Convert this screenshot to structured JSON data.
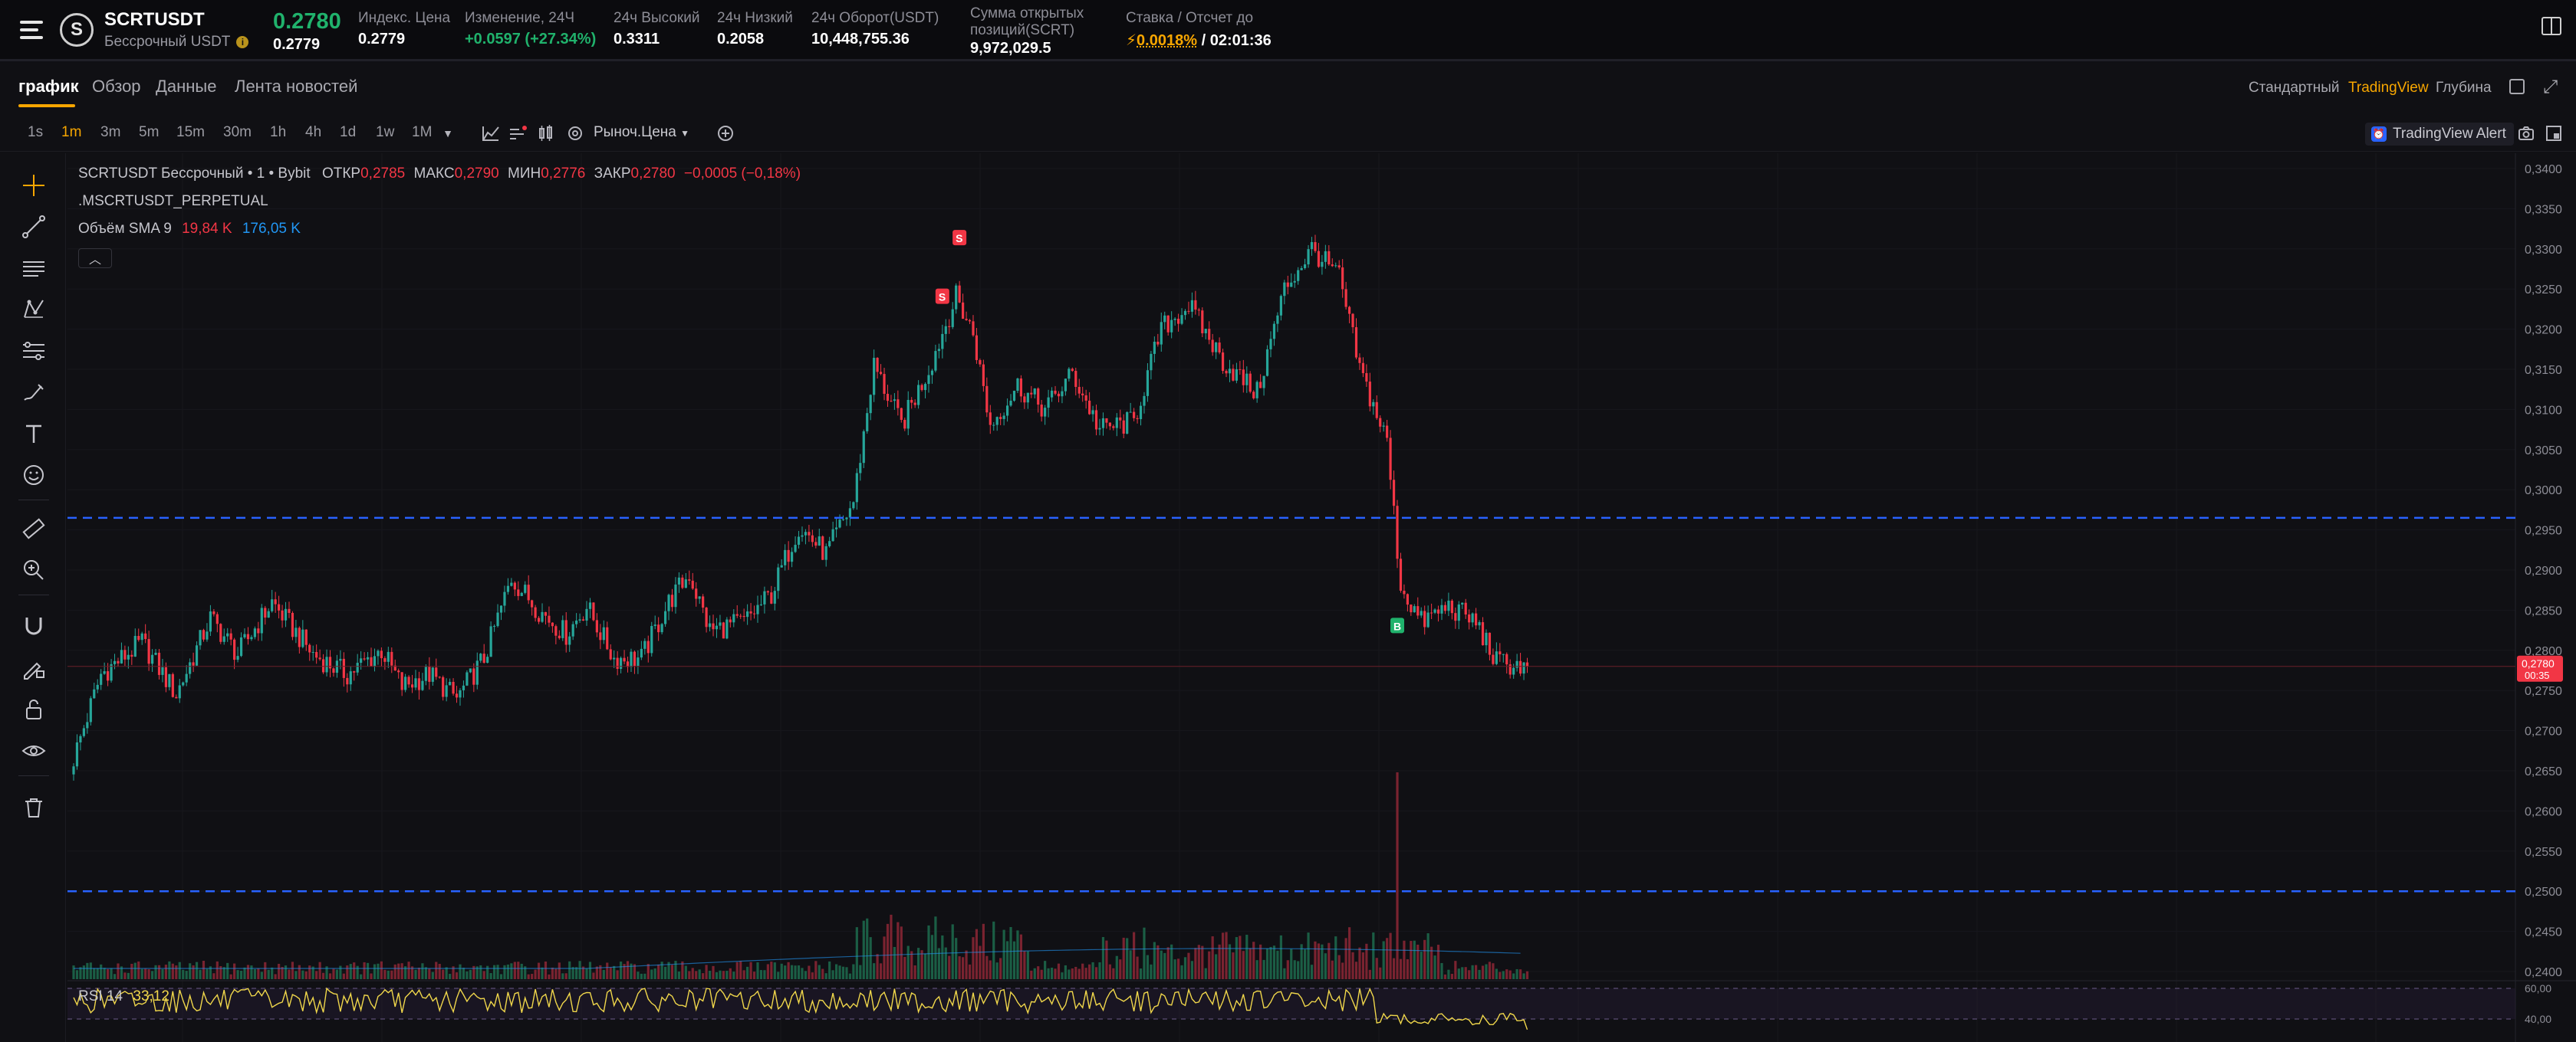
{
  "header": {
    "symbol": "SCRTUSDT",
    "contract_type": "Бессрочный USDT",
    "coin_icon": "S",
    "last_price": "0.2780",
    "mark_price": "0.2779",
    "stats": [
      {
        "label": "Индекс. Цена",
        "value": "0.2779",
        "tone": "white"
      },
      {
        "label": "Изменение, 24Ч",
        "value": "+0.0597 (+27.34%)",
        "tone": "green"
      },
      {
        "label": "24ч Высокий",
        "value": "0.3311",
        "tone": "white"
      },
      {
        "label": "24ч Низкий",
        "value": "0.2058",
        "tone": "white"
      },
      {
        "label": "24ч Оборот(USDT)",
        "value": "10,448,755.36",
        "tone": "white"
      },
      {
        "label_line1": "Сумма открытых",
        "label_line2": "позиций(SCRT)",
        "value": "9,972,029.5",
        "tone": "white"
      },
      {
        "label": "Ставка / Отсчет до",
        "rate": "0.0018%",
        "countdown": "/ 02:01:36"
      }
    ]
  },
  "tabs": [
    {
      "label": "график",
      "active": true
    },
    {
      "label": "Обзор"
    },
    {
      "label": "Данные"
    },
    {
      "label": "Лента новостей"
    }
  ],
  "view_modes": [
    {
      "label": "Стандартный"
    },
    {
      "label": "TradingView",
      "active": true
    },
    {
      "label": "Глубина"
    }
  ],
  "timeframes": [
    "1s",
    "1m",
    "3m",
    "5m",
    "15m",
    "30m",
    "1h",
    "4h",
    "1d",
    "1w",
    "1M"
  ],
  "active_timeframe": "1m",
  "toolbar": {
    "price_type": "Рыноч.Цена",
    "alert_label": "TradingView Alert"
  },
  "drawing_tools": [
    "crosshair-icon",
    "trend-line-icon",
    "horizontal-lines-icon",
    "pattern-icon",
    "fib-icon",
    "brush-icon",
    "text-icon",
    "emoji-icon",
    "ruler-icon",
    "zoom-in-icon",
    "magnet-icon",
    "lock-pencil-icon",
    "lock-icon",
    "eye-icon",
    "trash-icon"
  ],
  "legend": {
    "line1_prefix": "SCRTUSDT Бессрочный • 1 • Bybit",
    "open_label": "ОТКР",
    "open": "0,2785",
    "high_label": "МАКС",
    "high": "0,2790",
    "low_label": "МИН",
    "low": "0,2776",
    "close_label": "ЗАКР",
    "close": "0,2780",
    "change": "−0,0005 (−0,18%)",
    "line2": ".MSCRTUSDT_PERPETUAL",
    "volume_label": "Объём SMA 9",
    "volume_value": "19,84 K",
    "volume_sma": "176,05 K"
  },
  "rsi": {
    "label": "RSI 14",
    "value": "33,12"
  },
  "colors": {
    "up": "#26a69a",
    "down": "#f23645",
    "accent": "#f7a600",
    "dashed": "#2962ff"
  },
  "chart_data": {
    "type": "candlestick",
    "price_axis": {
      "min": 0.24,
      "max": 0.34,
      "ticks": [
        "0,3400",
        "0,3350",
        "0,3300",
        "0,3250",
        "0,3200",
        "0,3150",
        "0,3100",
        "0,3050",
        "0,3000",
        "0,2950",
        "0,2900",
        "0,2850",
        "0,2800",
        "0,2750",
        "0,2700",
        "0,2650",
        "0,2600",
        "0,2550",
        "0,2500",
        "0,2450",
        "0,2400"
      ]
    },
    "last_price_label": "0,2780",
    "last_price_countdown": "00:35",
    "horizontal_levels": [
      0.2965,
      0.25
    ],
    "trade_markers": [
      {
        "type": "S",
        "index": 259,
        "price": 0.3313
      },
      {
        "type": "S",
        "index": 254,
        "price": 0.324
      },
      {
        "type": "B",
        "index": 387,
        "price": 0.283
      }
    ],
    "series_anchors": [
      [
        0,
        0.2665
      ],
      [
        8,
        0.277
      ],
      [
        20,
        0.281
      ],
      [
        30,
        0.2745
      ],
      [
        40,
        0.284
      ],
      [
        48,
        0.2795
      ],
      [
        58,
        0.286
      ],
      [
        70,
        0.2795
      ],
      [
        80,
        0.277
      ],
      [
        90,
        0.28
      ],
      [
        96,
        0.2755
      ],
      [
        104,
        0.277
      ],
      [
        112,
        0.274
      ],
      [
        120,
        0.279
      ],
      [
        128,
        0.289
      ],
      [
        136,
        0.285
      ],
      [
        144,
        0.282
      ],
      [
        150,
        0.2855
      ],
      [
        158,
        0.279
      ],
      [
        166,
        0.279
      ],
      [
        174,
        0.286
      ],
      [
        180,
        0.2895
      ],
      [
        186,
        0.2825
      ],
      [
        196,
        0.2835
      ],
      [
        204,
        0.287
      ],
      [
        212,
        0.2955
      ],
      [
        220,
        0.292
      ],
      [
        228,
        0.2985
      ],
      [
        234,
        0.3155
      ],
      [
        242,
        0.308
      ],
      [
        250,
        0.315
      ],
      [
        258,
        0.324
      ],
      [
        263,
        0.3195
      ],
      [
        268,
        0.308
      ],
      [
        276,
        0.313
      ],
      [
        284,
        0.31
      ],
      [
        292,
        0.3145
      ],
      [
        300,
        0.3075
      ],
      [
        310,
        0.3085
      ],
      [
        318,
        0.32
      ],
      [
        326,
        0.323
      ],
      [
        336,
        0.316
      ],
      [
        346,
        0.312
      ],
      [
        354,
        0.325
      ],
      [
        362,
        0.33
      ],
      [
        370,
        0.3265
      ],
      [
        376,
        0.315
      ],
      [
        384,
        0.306
      ],
      [
        388,
        0.288
      ],
      [
        394,
        0.2835
      ],
      [
        402,
        0.2855
      ],
      [
        410,
        0.2835
      ],
      [
        416,
        0.2785
      ],
      [
        425,
        0.278
      ]
    ],
    "volume": {
      "unit": "K",
      "sma_latest": "176,05 K",
      "latest": "19,84 K",
      "spike_index": 387,
      "spike_relative_height": 1.0
    },
    "rsi": {
      "period": 14,
      "value": 33.12,
      "levels": [
        60,
        40
      ],
      "axis_ticks": [
        "60,00",
        "40,00"
      ]
    }
  }
}
